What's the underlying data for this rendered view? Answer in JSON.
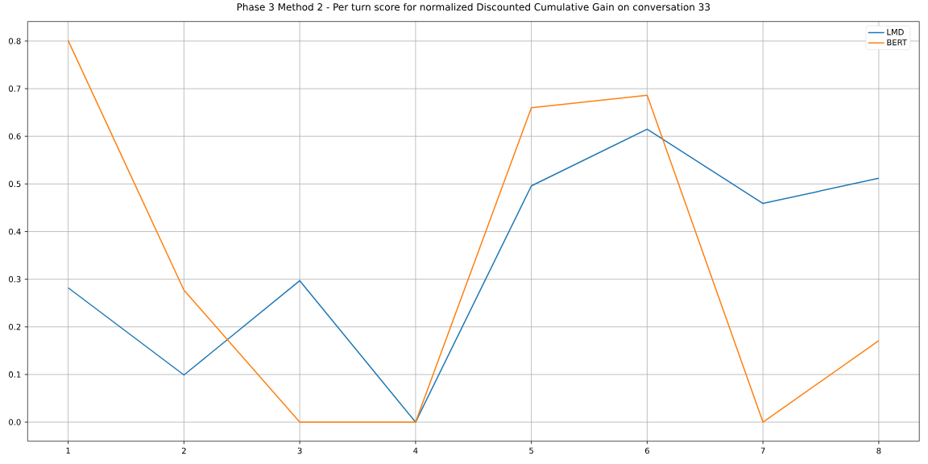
{
  "chart_data": {
    "type": "line",
    "title": "Phase 3 Method 2 - Per turn score for normalized Discounted Cumulative Gain on conversation 33",
    "x": [
      1,
      2,
      3,
      4,
      5,
      6,
      7,
      8
    ],
    "series": [
      {
        "name": "LMD",
        "color": "#1f77b4",
        "values": [
          0.282,
          0.099,
          0.297,
          0.0,
          0.496,
          0.615,
          0.459,
          0.512
        ]
      },
      {
        "name": "BERT",
        "color": "#ff7f0e",
        "values": [
          0.801,
          0.277,
          0.0,
          0.0,
          0.66,
          0.686,
          0.0,
          0.171
        ]
      }
    ],
    "xlim": [
      0.65,
      8.35
    ],
    "ylim": [
      -0.04,
      0.841
    ],
    "xticks": [
      1,
      2,
      3,
      4,
      5,
      6,
      7,
      8
    ],
    "yticks": [
      {
        "value": 0,
        "label": "0.0"
      },
      0.1,
      0.2,
      0.3,
      0.4,
      0.5,
      0.6,
      0.7,
      0.8
    ],
    "grid": true,
    "legend": "top right"
  }
}
